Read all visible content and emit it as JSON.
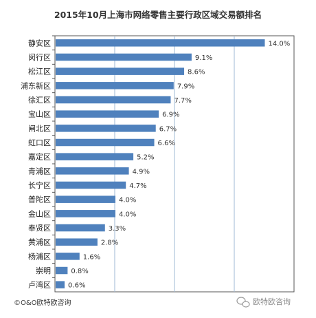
{
  "chart_data": {
    "type": "bar",
    "orientation": "horizontal",
    "title": "2015年10月上海市网络零售主要行政区域交易额排名",
    "categories": [
      "静安区",
      "闵行区",
      "松江区",
      "浦东新区",
      "徐汇区",
      "宝山区",
      "闸北区",
      "虹口区",
      "嘉定区",
      "青浦区",
      "长宁区",
      "普陀区",
      "金山区",
      "奉贤区",
      "黄浦区",
      "杨浦区",
      "崇明",
      "卢湾区"
    ],
    "values": [
      14.0,
      9.1,
      8.6,
      7.9,
      7.7,
      6.9,
      6.7,
      6.6,
      5.2,
      4.9,
      4.7,
      4.0,
      4.0,
      3.3,
      2.8,
      1.6,
      0.8,
      0.6
    ],
    "value_labels": [
      "14.0%",
      "9.1%",
      "8.6%",
      "7.9%",
      "7.7%",
      "6.9%",
      "6.7%",
      "6.6%",
      "5.2%",
      "4.9%",
      "4.7%",
      "4.0%",
      "4.0%",
      "3.3%",
      "2.8%",
      "1.6%",
      "0.8%",
      "0.6%"
    ],
    "xlim": [
      0,
      16
    ],
    "grid": "vertical",
    "bar_color": "#4f81bd",
    "grid_color": "#9fb8d4"
  },
  "footer": {
    "copyright": "©O&O欧特欧咨询",
    "watermark": "欧特欧咨询"
  }
}
